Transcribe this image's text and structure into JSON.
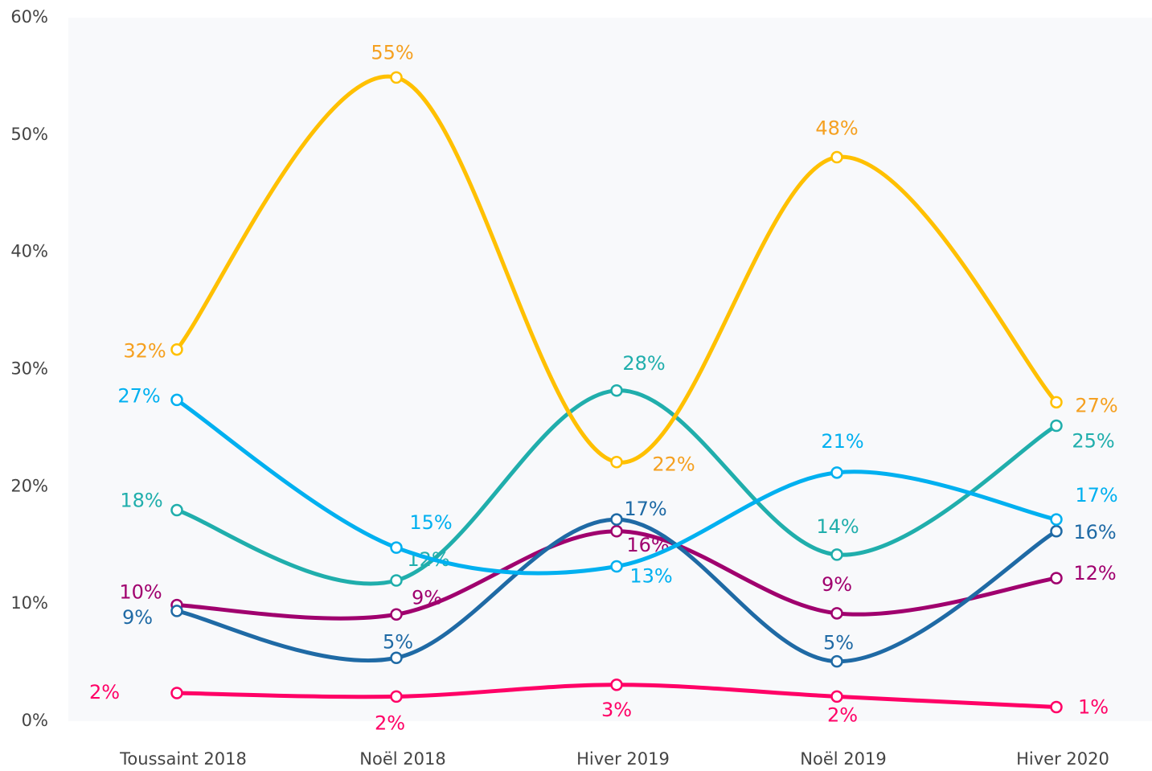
{
  "chart_data": {
    "type": "line",
    "categories": [
      "Toussaint 2018",
      "Noël 2018",
      "Hiver 2019",
      "Noël 2019",
      "Hiver 2020"
    ],
    "series": [
      {
        "color": "#ff0066",
        "values": [
          2.4,
          2.1,
          3.1,
          2.1,
          1.2
        ],
        "value_labels": [
          "2%",
          "2%",
          "3%",
          "2%",
          "1%"
        ]
      },
      {
        "color": "#a0006e",
        "values": [
          9.9,
          9.1,
          16.2,
          9.2,
          12.2
        ],
        "value_labels": [
          "10%",
          "9%",
          "16%",
          "9%",
          "12%"
        ]
      },
      {
        "color": "#1f6aa5",
        "values": [
          9.4,
          5.4,
          17.2,
          5.1,
          16.2
        ],
        "value_labels": [
          "9%",
          "5%",
          "17%",
          "5%",
          "16%"
        ]
      },
      {
        "color": "#20aeac",
        "values": [
          18.0,
          12.0,
          28.2,
          14.2,
          25.2
        ],
        "value_labels": [
          "18%",
          "12%",
          "28%",
          "14%",
          "25%"
        ]
      },
      {
        "color": "#00b0f0",
        "values": [
          27.4,
          14.8,
          13.2,
          21.2,
          17.2
        ],
        "value_labels": [
          "27%",
          "15%",
          "13%",
          "21%",
          "17%"
        ]
      },
      {
        "color": "#ffc000",
        "label_color": "#f5a020",
        "values": [
          31.7,
          54.9,
          22.1,
          48.1,
          27.2
        ],
        "value_labels": [
          "32%",
          "55%",
          "22%",
          "48%",
          "27%"
        ]
      }
    ],
    "ylim": [
      0,
      60
    ],
    "yticks": [
      {
        "value": 0,
        "label": "0%"
      },
      {
        "value": 10,
        "label": "10%"
      },
      {
        "value": 20,
        "label": "20%"
      },
      {
        "value": 30,
        "label": "30%"
      },
      {
        "value": 40,
        "label": "40%"
      },
      {
        "value": 50,
        "label": "50%"
      },
      {
        "value": 60,
        "label": "60%"
      }
    ],
    "grid": false
  }
}
